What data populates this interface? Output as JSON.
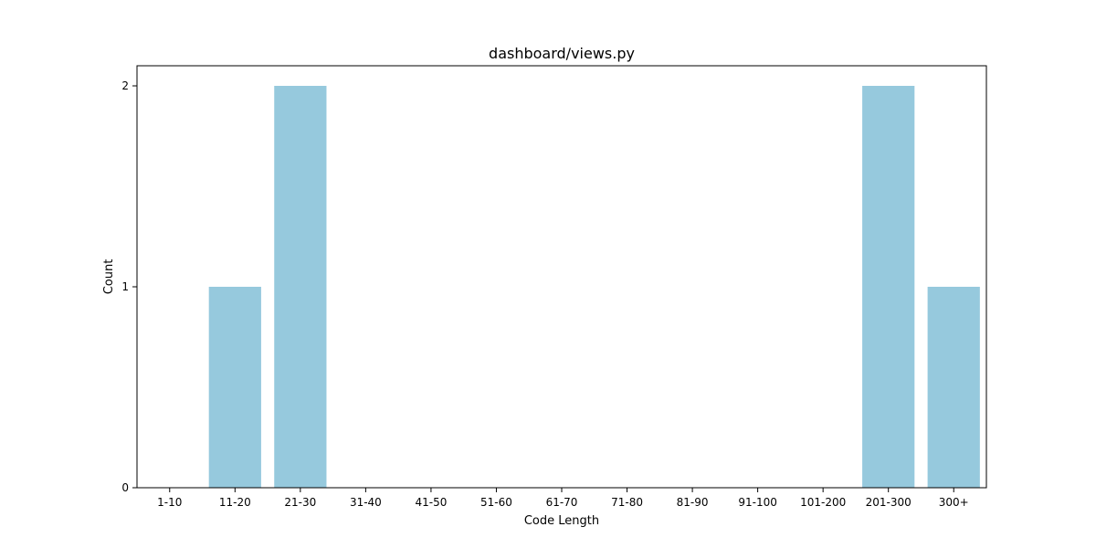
{
  "chart_data": {
    "type": "bar",
    "title": "dashboard/views.py",
    "xlabel": "Code Length",
    "ylabel": "Count",
    "categories": [
      "1-10",
      "11-20",
      "21-30",
      "31-40",
      "41-50",
      "51-60",
      "61-70",
      "71-80",
      "81-90",
      "91-100",
      "101-200",
      "201-300",
      "300+"
    ],
    "values": [
      0,
      1,
      2,
      0,
      0,
      0,
      0,
      0,
      0,
      0,
      0,
      2,
      1
    ],
    "ylim": [
      0,
      2.1
    ],
    "yticks": [
      0,
      1,
      2
    ],
    "bar_color": "#96c9dd",
    "grid": false,
    "legend": "none"
  }
}
